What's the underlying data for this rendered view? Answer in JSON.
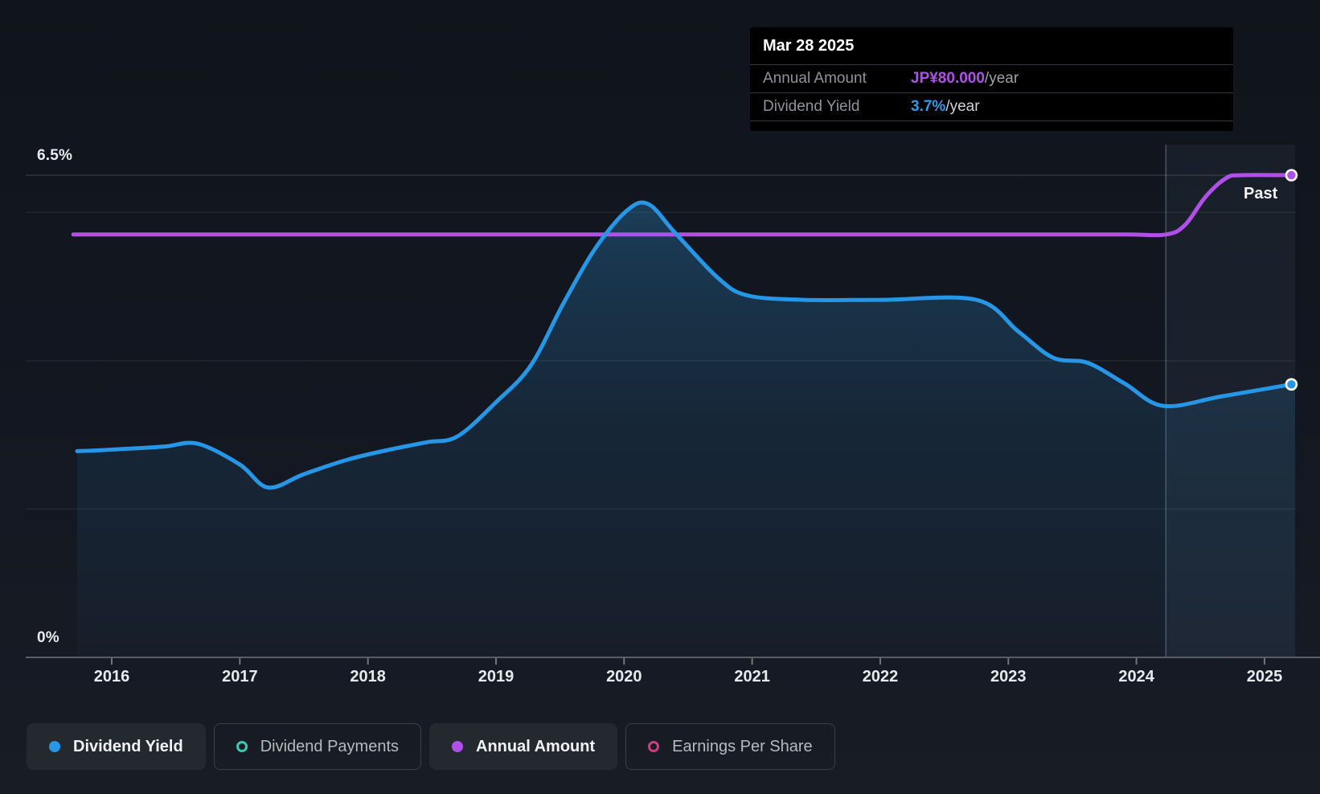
{
  "tooltip": {
    "date": "Mar 28 2025",
    "rows": [
      {
        "label": "Annual Amount",
        "value": "JP¥80.000",
        "suffix": "/year",
        "value_color": "#b14fe9",
        "suffix_color": "#9ba1a8"
      },
      {
        "label": "Dividend Yield",
        "value": "3.7%",
        "suffix": "/year",
        "value_color": "#2b9ce9",
        "suffix_color": "#ced2d7"
      }
    ]
  },
  "axis": {
    "y_top_label": "6.5%",
    "y_bottom_label": "0%",
    "years": [
      "2016",
      "2017",
      "2018",
      "2019",
      "2020",
      "2021",
      "2022",
      "2023",
      "2024",
      "2025"
    ]
  },
  "past_label": "Past",
  "legend": [
    {
      "label": "Dividend Yield",
      "marker": "dot",
      "color": "#2697e7",
      "active": true
    },
    {
      "label": "Dividend Payments",
      "marker": "ring",
      "color": "#3cc8b2",
      "active": false
    },
    {
      "label": "Annual Amount",
      "marker": "dot",
      "color": "#b14fe9",
      "active": true
    },
    {
      "label": "Earnings Per Share",
      "marker": "ring",
      "color": "#cf3d80",
      "active": false
    }
  ],
  "chart_data": {
    "type": "line",
    "title": "Dividend history",
    "x_axis": {
      "tick_years": [
        2016,
        2017,
        2018,
        2019,
        2020,
        2021,
        2022,
        2023,
        2024,
        2025
      ],
      "range": [
        2015.7,
        2025.24
      ]
    },
    "y_axis": {
      "unit": "%",
      "range": [
        0,
        6.5
      ],
      "gridlines_pct": [
        6.5,
        6,
        4,
        2
      ],
      "label_top": "6.5%",
      "label_bottom": "0%"
    },
    "past_region_start": 2024.23,
    "series": [
      {
        "name": "Dividend Yield",
        "color": "#2697e7",
        "unit": "percent_per_year",
        "area_fill": true,
        "end_marker": true,
        "end_value_label": "3.7%",
        "points": [
          [
            2015.73,
            2.78
          ],
          [
            2016.0,
            2.8
          ],
          [
            2016.4,
            2.84
          ],
          [
            2016.67,
            2.88
          ],
          [
            2017.0,
            2.6
          ],
          [
            2017.22,
            2.29
          ],
          [
            2017.5,
            2.47
          ],
          [
            2017.83,
            2.66
          ],
          [
            2018.14,
            2.79
          ],
          [
            2018.46,
            2.9
          ],
          [
            2018.7,
            2.98
          ],
          [
            2019.0,
            3.44
          ],
          [
            2019.27,
            3.93
          ],
          [
            2019.52,
            4.75
          ],
          [
            2019.77,
            5.5
          ],
          [
            2020.02,
            6.02
          ],
          [
            2020.19,
            6.11
          ],
          [
            2020.4,
            5.72
          ],
          [
            2020.73,
            5.12
          ],
          [
            2020.96,
            4.88
          ],
          [
            2021.4,
            4.82
          ],
          [
            2022.0,
            4.82
          ],
          [
            2022.75,
            4.82
          ],
          [
            2023.08,
            4.39
          ],
          [
            2023.35,
            4.04
          ],
          [
            2023.62,
            3.97
          ],
          [
            2023.91,
            3.69
          ],
          [
            2024.21,
            3.39
          ],
          [
            2024.67,
            3.52
          ],
          [
            2025.21,
            3.68
          ]
        ]
      },
      {
        "name": "Annual Amount",
        "color": "#b14fe9",
        "unit": "JPY_per_year",
        "note": "plotted on the yield axis scale for display; labeled end value JP¥80.000/year",
        "area_fill": false,
        "end_marker": true,
        "end_value_label": "JP¥80.000",
        "points": [
          [
            2015.7,
            5.7
          ],
          [
            2017.0,
            5.7
          ],
          [
            2018.5,
            5.7
          ],
          [
            2020.0,
            5.7
          ],
          [
            2021.5,
            5.7
          ],
          [
            2023.0,
            5.7
          ],
          [
            2023.9,
            5.7
          ],
          [
            2024.23,
            5.7
          ],
          [
            2024.38,
            5.83
          ],
          [
            2024.54,
            6.21
          ],
          [
            2024.7,
            6.46
          ],
          [
            2024.82,
            6.5
          ],
          [
            2025.21,
            6.5
          ]
        ]
      }
    ]
  }
}
